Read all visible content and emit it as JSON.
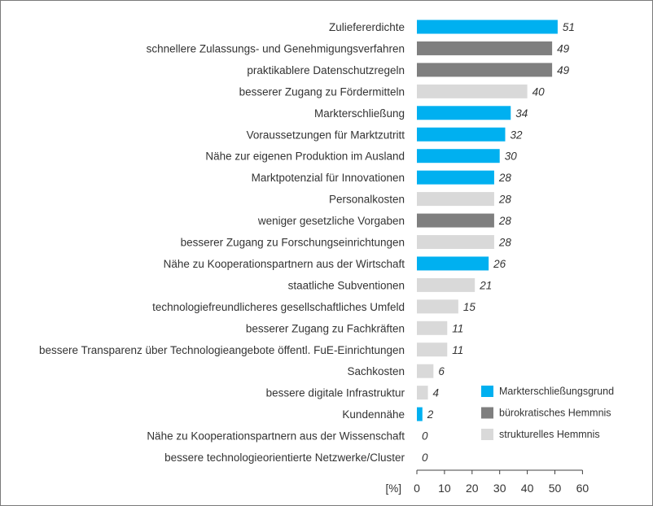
{
  "chart_data": {
    "type": "bar",
    "orientation": "horizontal",
    "unit_label": "[%]",
    "categories": [
      "Zuliefererdichte",
      "schnellere Zulassungs- und Genehmigungsverfahren",
      "praktikablere Datenschutzregeln",
      "besserer Zugang zu Fördermitteln",
      "Markterschließung",
      "Voraussetzungen für Marktzutritt",
      "Nähe zur eigenen Produktion im Ausland",
      "Marktpotenzial für Innovationen",
      "Personalkosten",
      "weniger gesetzliche Vorgaben",
      "besserer Zugang zu Forschungseinrichtungen",
      "Nähe zu Kooperationspartnern aus der Wirtschaft",
      "staatliche Subventionen",
      "technologiefreundlicheres gesellschaftliches Umfeld",
      "besserer Zugang zu Fachkräften",
      "bessere Transparenz über Technologieangebote öffentl. FuE-Einrichtungen",
      "Sachkosten",
      "bessere digitale Infrastruktur",
      "Kundennähe",
      "Nähe zu Kooperationspartnern aus der Wissenschaft",
      "bessere technologieorientierte Netzwerke/Cluster"
    ],
    "values": [
      51,
      49,
      49,
      40,
      34,
      32,
      30,
      28,
      28,
      28,
      28,
      26,
      21,
      15,
      11,
      11,
      6,
      4,
      2,
      0,
      0
    ],
    "groups": [
      0,
      1,
      1,
      2,
      0,
      0,
      0,
      0,
      2,
      1,
      2,
      0,
      2,
      2,
      2,
      2,
      2,
      2,
      0,
      2,
      2
    ],
    "legend": [
      {
        "label": "Markterschließungsgrund",
        "color": "#00B0F0"
      },
      {
        "label": "bürokratisches Hemmnis",
        "color": "#7F7F7F"
      },
      {
        "label": "strukturelles Hemmnis",
        "color": "#D9D9D9"
      }
    ],
    "xlim": [
      0,
      60
    ],
    "xticks": [
      0,
      10,
      20,
      30,
      40,
      50,
      60
    ],
    "grid": false,
    "legend_position": "bottom-right"
  }
}
